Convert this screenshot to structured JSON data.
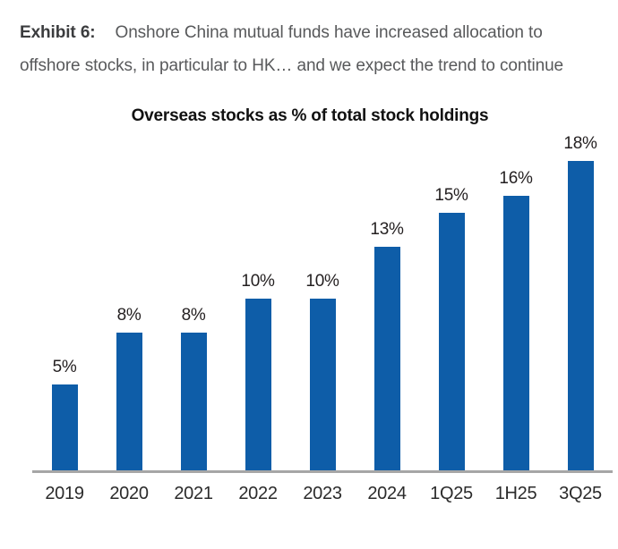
{
  "exhibit": {
    "label": "Exhibit 6:",
    "title": "Onshore China mutual funds have increased allocation to offshore stocks, in particular to HK… and we expect the trend to continue"
  },
  "chart_data": {
    "type": "bar",
    "title": "Overseas stocks as % of total stock holdings",
    "categories": [
      "2019",
      "2020",
      "2021",
      "2022",
      "2023",
      "2024",
      "1Q25",
      "1H25",
      "3Q25"
    ],
    "values": [
      5,
      8,
      8,
      10,
      10,
      13,
      15,
      16,
      18
    ],
    "value_labels": [
      "5%",
      "8%",
      "8%",
      "10%",
      "10%",
      "13%",
      "15%",
      "16%",
      "18%"
    ],
    "xlabel": "",
    "ylabel": "",
    "unit": "%",
    "ylim": [
      0,
      20
    ],
    "grid": false,
    "legend_position": "none",
    "bar_color": "#0e5da8",
    "axis_color": "#a6a6a6",
    "label_color": "#231f20"
  }
}
